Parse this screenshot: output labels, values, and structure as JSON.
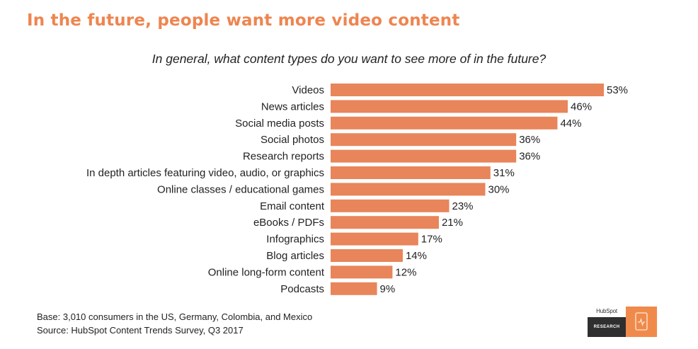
{
  "header": {
    "title": "In the future, people want more video content",
    "subtitle": "In general, what content types do you want to see more of in the future?"
  },
  "chart_data": {
    "type": "bar",
    "orientation": "horizontal",
    "categories": [
      "Videos",
      "News articles",
      "Social media posts",
      "Social photos",
      "Research reports",
      "In depth articles featuring video, audio, or graphics",
      "Online classes / educational games",
      "Email content",
      "eBooks / PDFs",
      "Infographics",
      "Blog articles",
      "Online long-form content",
      "Podcasts"
    ],
    "values": [
      53,
      46,
      44,
      36,
      36,
      31,
      30,
      23,
      21,
      17,
      14,
      12,
      9
    ],
    "value_labels": [
      "53%",
      "46%",
      "44%",
      "36%",
      "36%",
      "31%",
      "30%",
      "23%",
      "21%",
      "17%",
      "14%",
      "12%",
      "9%"
    ],
    "bar_color": "#e8855a",
    "xlim": [
      0,
      53
    ]
  },
  "footer": {
    "base": "Base: 3,010 consumers in the US, Germany, Colombia, and Mexico",
    "source": "Source: HubSpot Content Trends Survey, Q3 2017"
  },
  "logo": {
    "brand": "HubSpot",
    "label": "RESEARCH",
    "accent": "#f08a4b"
  }
}
